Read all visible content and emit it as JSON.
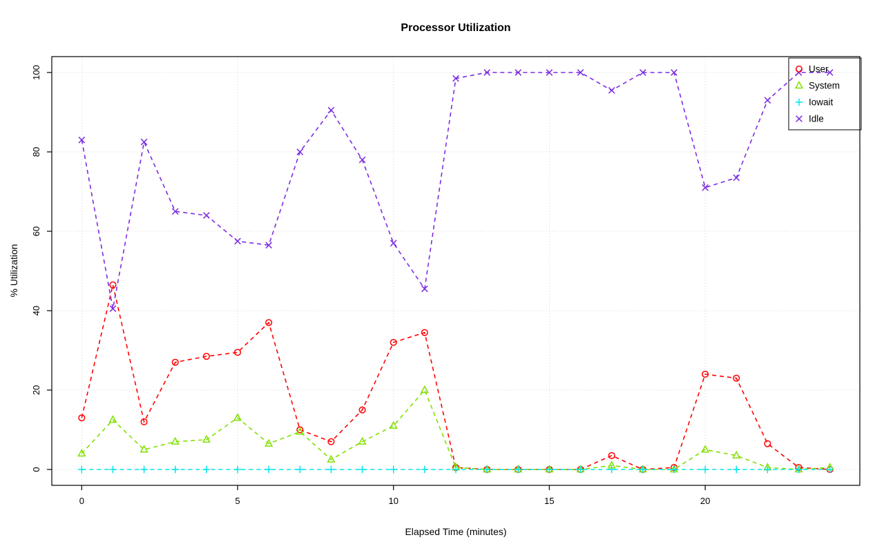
{
  "chart_data": {
    "type": "line",
    "title": "Processor Utilization",
    "xlabel": "Elapsed Time (minutes)",
    "ylabel": "% Utilization",
    "xlim": [
      0,
      24
    ],
    "ylim": [
      0,
      100
    ],
    "x_ticks": [
      0,
      5,
      10,
      15,
      20
    ],
    "y_ticks": [
      0,
      20,
      40,
      60,
      80,
      100
    ],
    "grid": true,
    "line_style": "dashed",
    "legend_position": "top-right",
    "x": [
      0,
      1,
      2,
      3,
      4,
      5,
      6,
      7,
      8,
      9,
      10,
      11,
      12,
      13,
      14,
      15,
      16,
      17,
      18,
      19,
      20,
      21,
      22,
      23,
      24
    ],
    "series": [
      {
        "name": "User",
        "marker": "circle",
        "color": "#ff0000",
        "values": [
          13,
          46.5,
          12,
          27,
          28.5,
          29.5,
          37,
          10,
          7,
          15,
          32,
          34.5,
          0.5,
          0,
          0,
          0,
          0,
          3.5,
          0,
          0.5,
          24,
          23,
          6.5,
          0.5,
          0
        ]
      },
      {
        "name": "System",
        "marker": "triangle",
        "color": "#80e000",
        "values": [
          4,
          12.5,
          5,
          7,
          7.5,
          13,
          6.5,
          9.5,
          2.5,
          7,
          11,
          20,
          0.5,
          0,
          0,
          0,
          0,
          1,
          0,
          0,
          5,
          3.5,
          0.5,
          0,
          0.5
        ]
      },
      {
        "name": "Iowait",
        "marker": "plus",
        "color": "#00e5ee",
        "values": [
          0,
          0,
          0,
          0,
          0,
          0,
          0,
          0,
          0,
          0,
          0,
          0,
          0,
          0,
          0,
          0,
          0,
          0,
          0,
          0,
          0,
          0,
          0,
          0,
          0
        ]
      },
      {
        "name": "Idle",
        "marker": "x",
        "color": "#7d2ce0",
        "values": [
          83,
          40.5,
          82.5,
          65,
          64,
          57.5,
          56.5,
          80,
          90.5,
          78,
          57,
          45.5,
          98.5,
          100,
          100,
          100,
          100,
          95.5,
          100,
          100,
          71,
          73.5,
          93,
          100,
          100
        ]
      }
    ]
  }
}
